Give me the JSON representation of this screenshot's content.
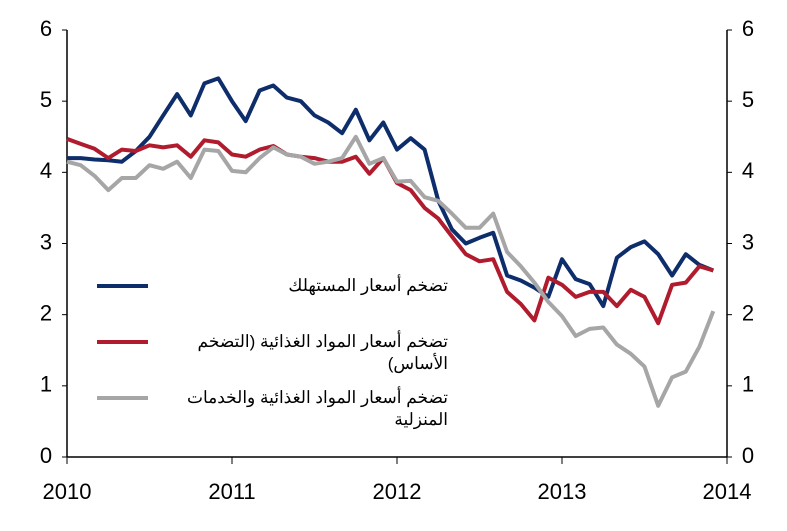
{
  "chart_data": {
    "type": "line",
    "x": [
      2010.0,
      2010.083,
      2010.167,
      2010.25,
      2010.333,
      2010.417,
      2010.5,
      2010.583,
      2010.667,
      2010.75,
      2010.833,
      2010.917,
      2011.0,
      2011.083,
      2011.167,
      2011.25,
      2011.333,
      2011.417,
      2011.5,
      2011.583,
      2011.667,
      2011.75,
      2011.833,
      2011.917,
      2012.0,
      2012.083,
      2012.167,
      2012.25,
      2012.333,
      2012.417,
      2012.5,
      2012.583,
      2012.667,
      2012.75,
      2012.833,
      2012.917,
      2013.0,
      2013.083,
      2013.167,
      2013.25,
      2013.333,
      2013.417,
      2013.5,
      2013.583,
      2013.667,
      2013.75,
      2013.833,
      2013.917
    ],
    "series": [
      {
        "name": "تضخم أسعار المستهلك",
        "color": "#0e2d6b",
        "values": [
          4.2,
          4.2,
          4.18,
          4.17,
          4.15,
          4.3,
          4.5,
          4.8,
          5.1,
          4.8,
          5.25,
          5.32,
          5.0,
          4.72,
          5.15,
          5.22,
          5.05,
          5.0,
          4.8,
          4.7,
          4.55,
          4.88,
          4.45,
          4.7,
          4.32,
          4.48,
          4.32,
          3.6,
          3.2,
          3.0,
          3.08,
          3.15,
          2.55,
          2.48,
          2.38,
          2.25,
          2.78,
          2.5,
          2.43,
          2.12,
          2.8,
          2.95,
          3.03,
          2.85,
          2.55,
          2.85,
          2.7,
          2.62
        ]
      },
      {
        "name": "تضخم أسعار المواد الغذائية (التضخم الأساس)",
        "color": "#b01c2e",
        "values": [
          4.47,
          4.4,
          4.33,
          4.2,
          4.32,
          4.3,
          4.38,
          4.35,
          4.38,
          4.22,
          4.45,
          4.42,
          4.25,
          4.22,
          4.32,
          4.37,
          4.25,
          4.22,
          4.2,
          4.15,
          4.15,
          4.22,
          3.98,
          4.2,
          3.85,
          3.75,
          3.5,
          3.35,
          3.1,
          2.85,
          2.75,
          2.78,
          2.32,
          2.15,
          1.92,
          2.52,
          2.42,
          2.25,
          2.32,
          2.32,
          2.12,
          2.35,
          2.25,
          1.88,
          2.42,
          2.45,
          2.68,
          2.62
        ]
      },
      {
        "name": "تضخم أسعار المواد الغذائية والخدمات المنزلية",
        "color": "#a6a6a6",
        "values": [
          4.15,
          4.1,
          3.95,
          3.75,
          3.92,
          3.92,
          4.1,
          4.05,
          4.15,
          3.92,
          4.32,
          4.3,
          4.02,
          4.0,
          4.2,
          4.35,
          4.25,
          4.22,
          4.12,
          4.15,
          4.2,
          4.5,
          4.12,
          4.2,
          3.87,
          3.88,
          3.65,
          3.6,
          3.42,
          3.22,
          3.22,
          3.42,
          2.88,
          2.68,
          2.45,
          2.18,
          1.98,
          1.7,
          1.8,
          1.82,
          1.58,
          1.45,
          1.27,
          0.72,
          1.12,
          1.2,
          1.55,
          2.05
        ]
      }
    ],
    "xlim": [
      2010,
      2014
    ],
    "xticks": [
      2010,
      2011,
      2012,
      2013,
      2014
    ],
    "ylim": [
      0,
      6
    ],
    "yticks": [
      0,
      1,
      2,
      3,
      4,
      5,
      6
    ],
    "y2lim": [
      0,
      6
    ],
    "y2ticks": [
      0,
      1,
      2,
      3,
      4,
      5,
      6
    ],
    "grid": false
  }
}
